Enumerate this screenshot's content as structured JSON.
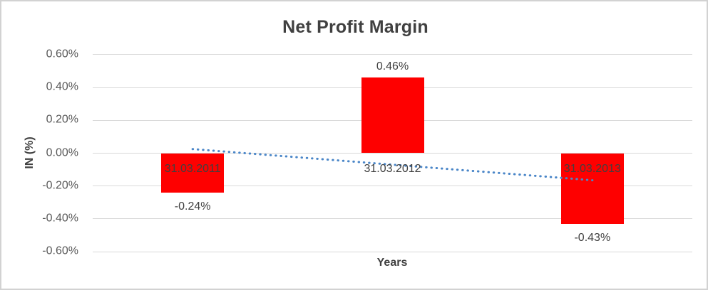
{
  "chart_data": {
    "type": "bar",
    "title": "Net Profit Margin",
    "xlabel": "Years",
    "ylabel": "IN (%)",
    "categories": [
      "31.03.2011",
      "31.03.2012",
      "31.03.2013"
    ],
    "values": [
      -0.24,
      0.46,
      -0.43
    ],
    "data_labels": [
      "-0.24%",
      "0.46%",
      "-0.43%"
    ],
    "yticks": [
      {
        "value": 0.6,
        "label": "0.60%"
      },
      {
        "value": 0.4,
        "label": "0.40%"
      },
      {
        "value": 0.2,
        "label": "0.20%"
      },
      {
        "value": 0.0,
        "label": "0.00%"
      },
      {
        "value": -0.2,
        "label": "-0.20%"
      },
      {
        "value": -0.4,
        "label": "-0.40%"
      },
      {
        "value": -0.6,
        "label": "-0.60%"
      }
    ],
    "ylim": [
      -0.6,
      0.6
    ],
    "grid": true,
    "legend": "none",
    "bar_color": "#fe0000",
    "text_color": "#404040",
    "tick_color": "#595959",
    "gridline_color": "#d9d9d9",
    "trendline": {
      "type": "linear",
      "style": "dotted",
      "color": "#4a86c8",
      "start_value": 0.025,
      "end_value": -0.165
    }
  }
}
